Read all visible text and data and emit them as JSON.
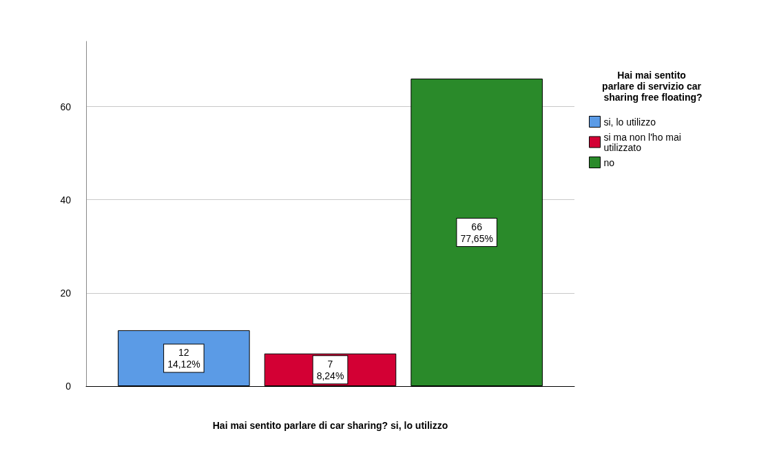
{
  "chart_data": {
    "type": "bar",
    "xlabel": "Hai mai sentito parlare di car sharing? si, lo utilizzo",
    "legend_title": "Hai mai sentito parlare di servizio car sharing free floating?",
    "categories": [
      null
    ],
    "series": [
      {
        "name": "si, lo utilizzo",
        "color": "#5b9be6",
        "values": [
          12
        ],
        "value_labels": [
          "12\n14,12%"
        ]
      },
      {
        "name": "si ma non l'ho mai utilizzato",
        "color": "#d30034",
        "values": [
          7
        ],
        "value_labels": [
          "7\n8,24%"
        ]
      },
      {
        "name": "no",
        "color": "#2a8a2a",
        "values": [
          66
        ],
        "value_labels": [
          "66\n77,65%"
        ]
      }
    ],
    "ylim": [
      0,
      74
    ],
    "yticks": [
      0,
      20,
      40,
      60
    ],
    "grid": "y",
    "legend": "top right"
  }
}
